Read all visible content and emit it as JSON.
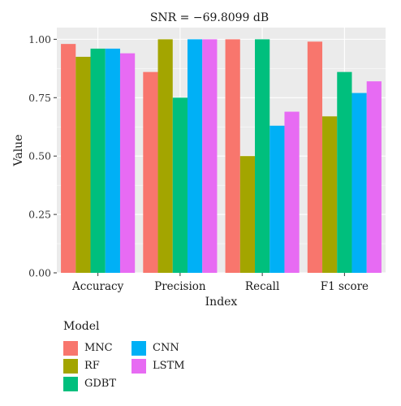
{
  "chart_data": {
    "type": "bar",
    "title": "SNR = −69.8099 dB",
    "xlabel": "Index",
    "ylabel": "Value",
    "ylim": [
      0,
      1.05
    ],
    "yticks": [
      "0.00",
      "0.25",
      "0.50",
      "0.75",
      "1.00"
    ],
    "categories": [
      "Accuracy",
      "Precision",
      "Recall",
      "F1 score"
    ],
    "series": [
      {
        "name": "MNC",
        "color": "#F8766D",
        "values": [
          0.98,
          0.86,
          1.0,
          0.99
        ]
      },
      {
        "name": "RF",
        "color": "#A3A500",
        "values": [
          0.925,
          1.0,
          0.5,
          0.67
        ]
      },
      {
        "name": "GDBT",
        "color": "#00BF7D",
        "values": [
          0.96,
          0.75,
          1.0,
          0.86
        ]
      },
      {
        "name": "CNN",
        "color": "#00B0F6",
        "values": [
          0.96,
          1.0,
          0.63,
          0.77
        ]
      },
      {
        "name": "LSTM",
        "color": "#E76BF3",
        "values": [
          0.94,
          1.0,
          0.69,
          0.82
        ]
      }
    ],
    "grid": true,
    "legend_title": "Model",
    "legend_position": "bottom-left",
    "panel_background": "#EBEBEB"
  }
}
